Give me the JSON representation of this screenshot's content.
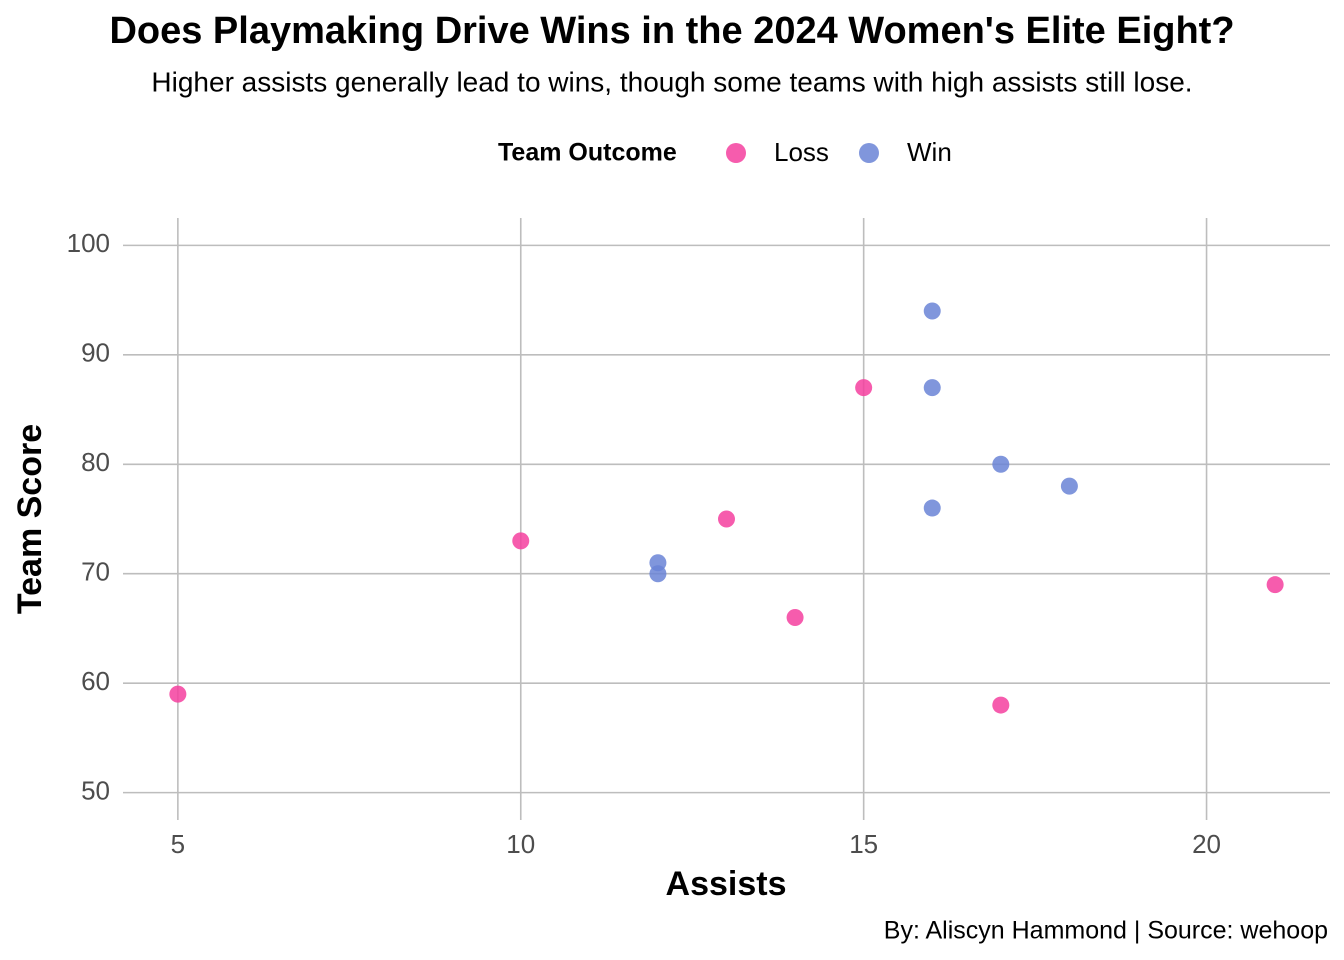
{
  "chart_data": {
    "type": "scatter",
    "title": "Does Playmaking Drive Wins in the 2024 Women's Elite Eight?",
    "subtitle": "Higher assists generally lead to wins, though some teams with high assists still lose.",
    "x_label": "Assists",
    "y_label": "Team Score",
    "legend_title": "Team Outcome",
    "legend_position": "top",
    "caption": "By: Aliscyn Hammond | Source: wehoop",
    "series": [
      {
        "name": "Loss",
        "color": "#f43f9f",
        "x": [
          5,
          10,
          13,
          14,
          15,
          17,
          21
        ],
        "values": [
          59,
          73,
          75,
          66,
          87,
          58,
          69
        ]
      },
      {
        "name": "Win",
        "color": "#6a84d6",
        "x": [
          12,
          12,
          16,
          16,
          16,
          17,
          18
        ],
        "values": [
          71,
          70,
          94,
          87,
          76,
          80,
          78
        ]
      }
    ],
    "xlim": [
      4.2,
      21.8
    ],
    "xticks": [
      5,
      10,
      15,
      20
    ],
    "ylim": [
      47.5,
      102.5
    ],
    "yticks": [
      50,
      60,
      70,
      80,
      90,
      100
    ],
    "grid": true
  }
}
